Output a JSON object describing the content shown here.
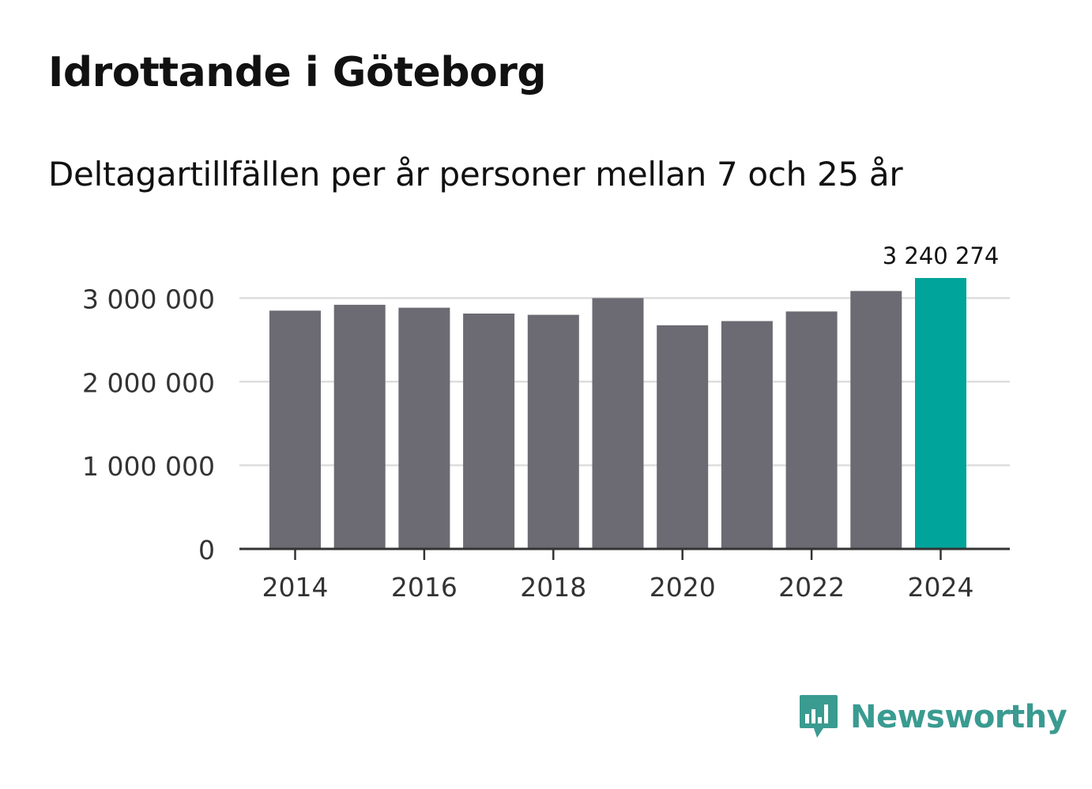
{
  "title": "Idrottande i Göteborg",
  "subtitle": "Deltagartillfällen per år personer mellan 7 och 25 år",
  "brand": {
    "name": "Newsworthy",
    "color": "#3a9b91",
    "logo_icon": "speech-bubble-bar-chart-icon"
  },
  "colors": {
    "bar": "#6c6b73",
    "highlight": "#00a49a",
    "grid": "#dddddd",
    "axis": "#333333",
    "tick_text": "#333333"
  },
  "chart_data": {
    "type": "bar",
    "title": "Idrottande i Göteborg",
    "subtitle": "Deltagartillfällen per år personer mellan 7 och 25 år",
    "categories": [
      "2014",
      "2015",
      "2016",
      "2017",
      "2018",
      "2019",
      "2020",
      "2021",
      "2022",
      "2023",
      "2024"
    ],
    "values": [
      2850000,
      2920000,
      2885000,
      2815000,
      2800000,
      3000000,
      2675000,
      2725000,
      2840000,
      3085000,
      3240274
    ],
    "highlight_index": 10,
    "highlight_label": "3 240 274",
    "x_tick_labels": [
      "2014",
      "2016",
      "2018",
      "2020",
      "2022",
      "2024"
    ],
    "y_ticks": [
      0,
      1000000,
      2000000,
      3000000
    ],
    "y_tick_labels": [
      "0",
      "1 000 000",
      "2 000 000",
      "3 000 000"
    ],
    "ylim": [
      0,
      3240274
    ],
    "grid": true,
    "xlabel": "",
    "ylabel": ""
  }
}
